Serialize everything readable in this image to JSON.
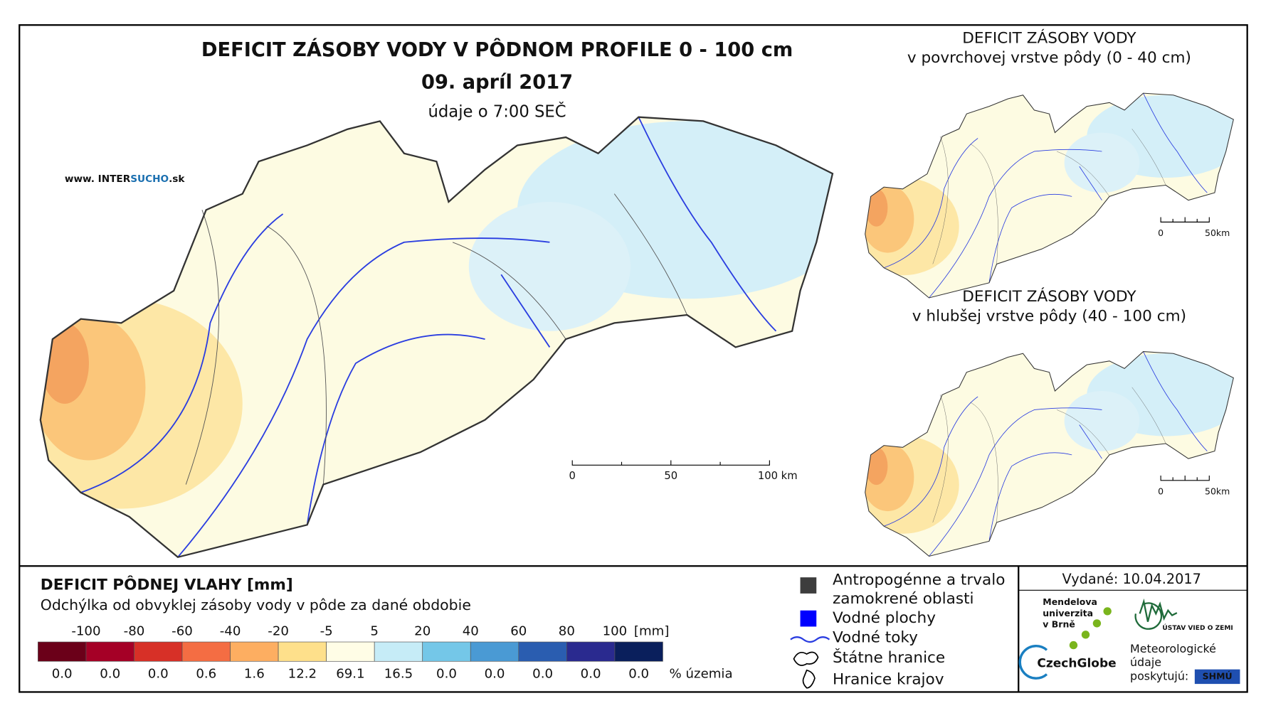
{
  "header": {
    "title": "DEFICIT ZÁSOBY VODY V PÔDNOM PROFILE 0 - 100 cm",
    "date": "09. apríl 2017",
    "time_note": "údaje o 7:00 SEČ",
    "website": {
      "prefix": "www. INTER",
      "highlight": "SUCHO",
      "suffix": ".sk"
    }
  },
  "main_map": {
    "scale_labels": [
      "0",
      "50",
      "100 km"
    ]
  },
  "inset_maps": [
    {
      "title_lines": [
        "DEFICIT ZÁSOBY VODY",
        "v povrchovej vrstve pôdy (0 - 40 cm)"
      ],
      "scale_labels": [
        "0",
        "50km"
      ]
    },
    {
      "title_lines": [
        "DEFICIT ZÁSOBY VODY",
        "v hlubšej vrstve pôdy (40 - 100 cm)"
      ],
      "scale_labels": [
        "0",
        "50km"
      ]
    }
  ],
  "legend": {
    "title": "DEFICIT PÔDNEJ VLAHY [mm]",
    "subtitle": "Odchýlka od obvyklej zásoby vody v pôde za dané obdobie",
    "boundaries": [
      "-100",
      "-80",
      "-60",
      "-40",
      "-20",
      "-5",
      "5",
      "20",
      "40",
      "60",
      "80",
      "100"
    ],
    "unit": "[mm]",
    "colors": [
      "#6b0019",
      "#a50026",
      "#d73027",
      "#f46d43",
      "#fdae61",
      "#fee08b",
      "#fffde6",
      "#c6ecf7",
      "#74c7e8",
      "#4a9ad4",
      "#2a5db0",
      "#2a2a8f",
      "#0a1f5c"
    ],
    "shares": [
      "0.0",
      "0.0",
      "0.0",
      "0.6",
      "1.6",
      "12.2",
      "69.1",
      "16.5",
      "0.0",
      "0.0",
      "0.0",
      "0.0",
      "0.0"
    ],
    "share_unit": "% územia"
  },
  "map_legend": {
    "items": [
      [
        "Antropogénne a trvalo",
        "zamokrené oblasti"
      ],
      [
        "Vodné plochy"
      ],
      [
        "Vodné toky"
      ],
      [
        "Štátne hranice"
      ],
      [
        "Hranice krajov"
      ]
    ]
  },
  "credits": {
    "issued": "Vydané: 10.04.2017",
    "mendel_lines": [
      "Mendelova",
      "univerzita",
      "v Brně"
    ],
    "czechglobe": "CzechGlobe",
    "ustav": "ÚSTAV VIED O ZEMI",
    "provider_lines": [
      "Meteorologické",
      "údaje",
      "poskytujú:"
    ],
    "shmu": "SHMÚ"
  }
}
